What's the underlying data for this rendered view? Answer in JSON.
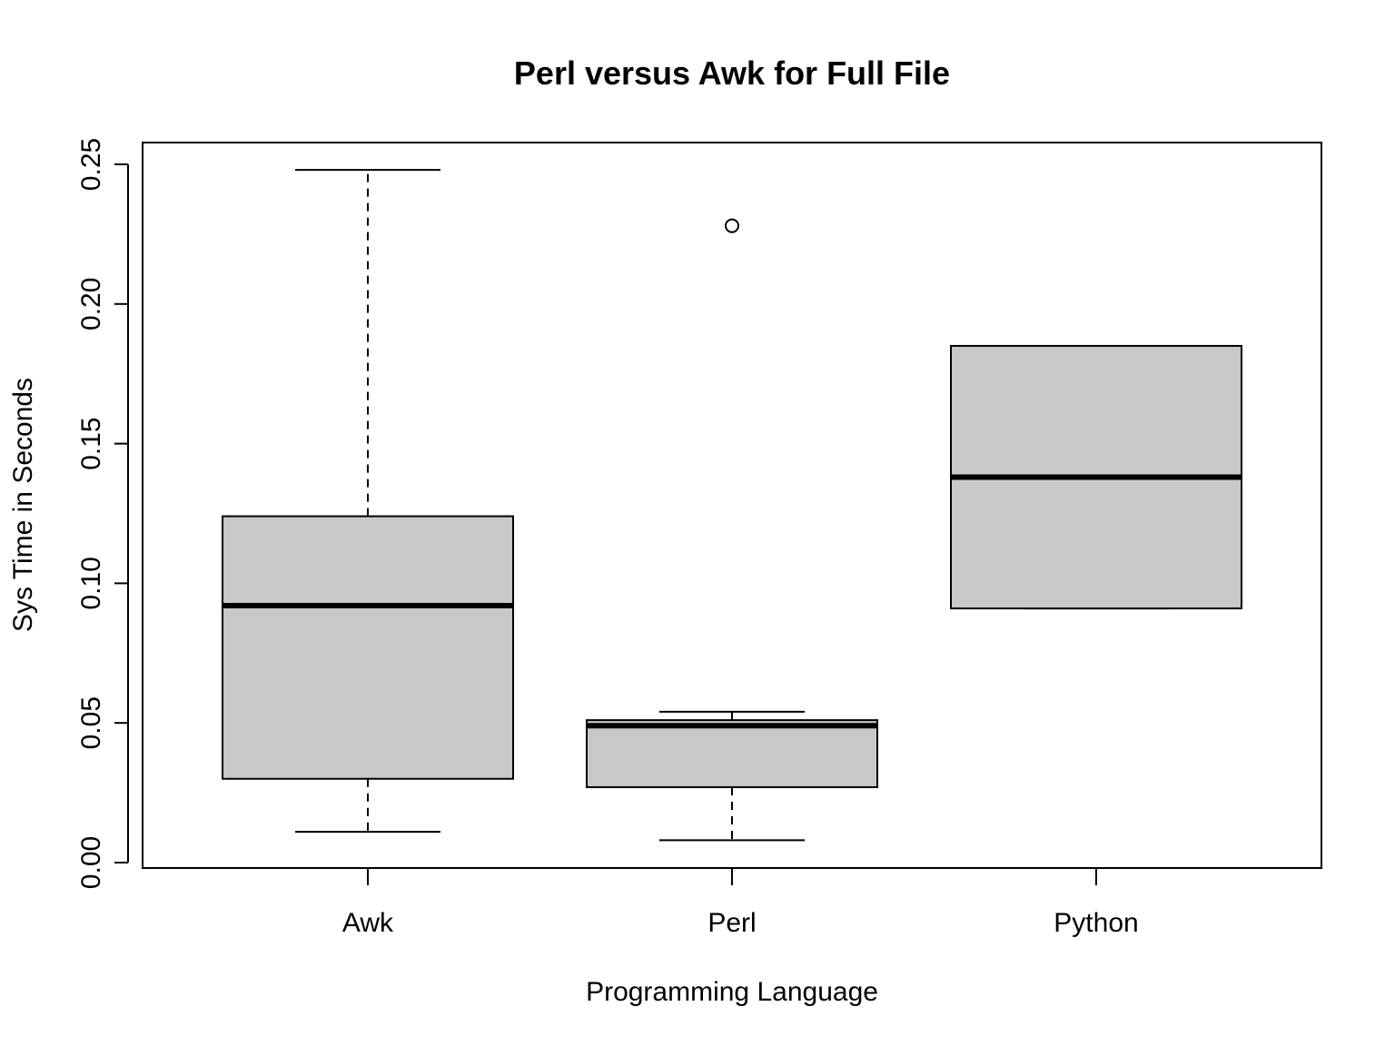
{
  "chart_data": {
    "type": "boxplot",
    "title": "Perl versus Awk for Full File",
    "xlabel": "Programming Language",
    "ylabel": "Sys Time in Seconds",
    "ylim": [
      0,
      0.25
    ],
    "yticks": [
      "0.00",
      "0.05",
      "0.10",
      "0.15",
      "0.20",
      "0.25"
    ],
    "grid": false,
    "box_fill": "#c8c8c8",
    "categories": [
      "Awk",
      "Perl",
      "Python"
    ],
    "boxes": [
      {
        "category": "Awk",
        "whisker_low": 0.011,
        "q1": 0.03,
        "median": 0.092,
        "q3": 0.124,
        "whisker_high": 0.248,
        "outliers": []
      },
      {
        "category": "Perl",
        "whisker_low": 0.008,
        "q1": 0.027,
        "median": 0.049,
        "q3": 0.051,
        "whisker_high": 0.054,
        "outliers": [
          0.228
        ]
      },
      {
        "category": "Python",
        "whisker_low": 0.091,
        "q1": 0.091,
        "median": 0.138,
        "q3": 0.185,
        "whisker_high": 0.185,
        "outliers": []
      }
    ]
  }
}
